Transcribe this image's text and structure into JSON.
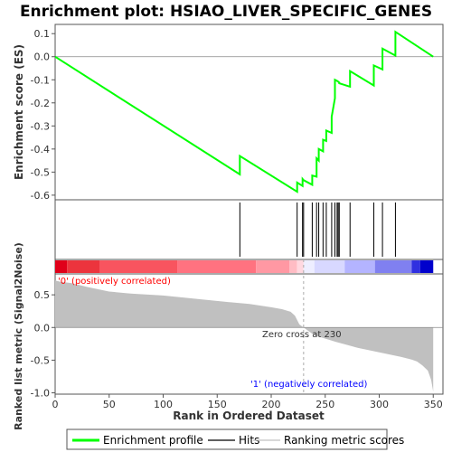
{
  "chart_data": {
    "type": "line",
    "title": "Enrichment plot: HSIAO_LIVER_SPECIFIC_GENES",
    "xlabel": "Rank in Ordered Dataset",
    "ylabel_top": "Enrichment score (ES)",
    "ylabel_bottom": "Ranked list metric (Signal2Noise)",
    "xlim": [
      0,
      359
    ],
    "x_ticks": [
      "0",
      "50",
      "100",
      "150",
      "200",
      "250",
      "300",
      "350"
    ],
    "es_ylim": [
      -0.62,
      0.14
    ],
    "es_ticks": [
      "0.1",
      "0.0",
      "-0.1",
      "-0.2",
      "-0.3",
      "-0.4",
      "-0.5",
      "-0.6"
    ],
    "metric_ylim": [
      -1.02,
      0.82
    ],
    "metric_ticks": [
      "0.5",
      "0.0",
      "-0.5",
      "-1.0"
    ],
    "hits": [
      171,
      224,
      229,
      230,
      238,
      242,
      244,
      248,
      251,
      256,
      259,
      261,
      262,
      263,
      273,
      295,
      303,
      315
    ],
    "enrichment_profile": {
      "x": [
        0,
        171,
        171,
        224,
        224,
        229,
        229,
        230,
        238,
        238,
        242,
        242,
        244,
        244,
        248,
        248,
        251,
        251,
        256,
        256,
        259,
        259,
        261,
        262,
        263,
        263,
        273,
        273,
        295,
        295,
        303,
        303,
        315,
        315,
        350
      ],
      "y": [
        0.0,
        -0.51,
        -0.43,
        -0.585,
        -0.545,
        -0.56,
        -0.53,
        -0.535,
        -0.555,
        -0.515,
        -0.52,
        -0.44,
        -0.45,
        -0.4,
        -0.41,
        -0.36,
        -0.365,
        -0.32,
        -0.33,
        -0.26,
        -0.18,
        -0.1,
        -0.105,
        -0.108,
        -0.112,
        -0.115,
        -0.13,
        -0.062,
        -0.125,
        -0.038,
        -0.055,
        0.035,
        0.005,
        0.108,
        0.0
      ]
    },
    "metric_profile": {
      "x": [
        0,
        5,
        15,
        30,
        50,
        70,
        100,
        130,
        160,
        180,
        200,
        210,
        218,
        222,
        226,
        230,
        240,
        260,
        280,
        300,
        320,
        330,
        335,
        340,
        345,
        348,
        350
      ],
      "y": [
        0.72,
        0.7,
        0.68,
        0.62,
        0.55,
        0.52,
        0.49,
        0.44,
        0.39,
        0.36,
        0.31,
        0.28,
        0.24,
        0.18,
        0.05,
        0.0,
        -0.12,
        -0.22,
        -0.31,
        -0.38,
        -0.45,
        -0.49,
        -0.52,
        -0.58,
        -0.66,
        -0.8,
        -0.98
      ]
    },
    "color_bar_segments": [
      {
        "x0": 0,
        "x1": 11,
        "color": "#e0001a"
      },
      {
        "x0": 11,
        "x1": 41,
        "color": "#ec343d"
      },
      {
        "x0": 41,
        "x1": 113,
        "color": "#f8545f"
      },
      {
        "x0": 113,
        "x1": 186,
        "color": "#ff7280"
      },
      {
        "x0": 186,
        "x1": 217,
        "color": "#ff98a3"
      },
      {
        "x0": 217,
        "x1": 224,
        "color": "#ffbcc4"
      },
      {
        "x0": 224,
        "x1": 230,
        "color": "#ffd8e0"
      },
      {
        "x0": 230,
        "x1": 240,
        "color": "#eeeeff"
      },
      {
        "x0": 240,
        "x1": 268,
        "color": "#d8d8ff"
      },
      {
        "x0": 268,
        "x1": 296,
        "color": "#b4b4ff"
      },
      {
        "x0": 296,
        "x1": 330,
        "color": "#8080f0"
      },
      {
        "x0": 330,
        "x1": 338,
        "color": "#3030e0"
      },
      {
        "x0": 338,
        "x1": 350,
        "color": "#0000cc"
      }
    ],
    "zero_cross_rank": 230,
    "annotations": {
      "positive": "'0' (positively correlated)",
      "zero_cross": "Zero cross at 230",
      "negative": "'1' (negatively correlated)"
    },
    "legend": [
      {
        "label": "Enrichment profile",
        "color": "#00ff00",
        "kind": "line-thick"
      },
      {
        "label": "Hits",
        "color": "#000000",
        "kind": "line"
      },
      {
        "label": "Ranking metric scores",
        "color": "#c0c0c0",
        "kind": "line"
      }
    ],
    "colors": {
      "es_line": "#00ff00",
      "hit_line": "#000000",
      "metric_fill": "#c0c0c0",
      "positive_text": "#ff0000",
      "negative_text": "#0000ff"
    }
  }
}
